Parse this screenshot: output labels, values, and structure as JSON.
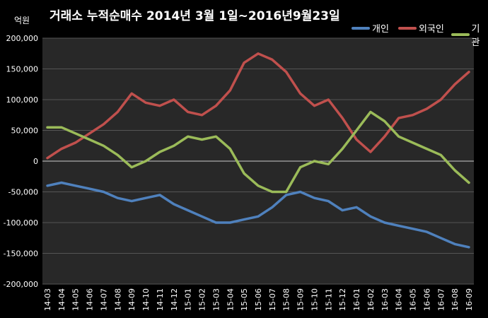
{
  "chart_data": {
    "type": "line",
    "title": "거래소  누적순매수 2014년 3월 1일~2016년9월23일",
    "ylabel": "억원",
    "xlabel": "",
    "ylim": [
      -200000,
      200000
    ],
    "yticks": [
      200000,
      150000,
      100000,
      50000,
      0,
      -50000,
      -100000,
      -150000,
      -200000
    ],
    "ytick_labels": [
      "200,000",
      "150,000",
      "100,000",
      "50,000",
      "0",
      "-50,000",
      "-100,000",
      "-150,000",
      "-200,000"
    ],
    "categories": [
      "14-03",
      "14-04",
      "14-05",
      "14-06",
      "14-07",
      "14-08",
      "14-09",
      "14-10",
      "14-11",
      "14-12",
      "15-01",
      "15-02",
      "15-03",
      "15-04",
      "15-05",
      "15-06",
      "15-07",
      "15-08",
      "15-09",
      "15-10",
      "15-11",
      "15-12",
      "16-01",
      "16-02",
      "16-03",
      "16-04",
      "16-05",
      "16-06",
      "16-07",
      "16-08",
      "16-09"
    ],
    "grid": true,
    "legend_position": "top-right",
    "series": [
      {
        "name": "개인",
        "color": "#4f81bd",
        "values": [
          -40000,
          -35000,
          -40000,
          -45000,
          -50000,
          -60000,
          -65000,
          -60000,
          -55000,
          -70000,
          -80000,
          -90000,
          -100000,
          -100000,
          -95000,
          -90000,
          -75000,
          -55000,
          -50000,
          -60000,
          -65000,
          -80000,
          -75000,
          -90000,
          -100000,
          -105000,
          -110000,
          -115000,
          -125000,
          -135000,
          -140000
        ]
      },
      {
        "name": "외국인",
        "color": "#c0504d",
        "values": [
          5000,
          20000,
          30000,
          45000,
          60000,
          80000,
          110000,
          95000,
          90000,
          100000,
          80000,
          75000,
          90000,
          115000,
          160000,
          175000,
          165000,
          145000,
          110000,
          90000,
          100000,
          70000,
          35000,
          15000,
          40000,
          70000,
          75000,
          85000,
          100000,
          125000,
          145000
        ]
      },
      {
        "name": "기관",
        "color": "#9bbb59",
        "values": [
          55000,
          55000,
          45000,
          35000,
          25000,
          10000,
          -10000,
          0,
          15000,
          25000,
          40000,
          35000,
          40000,
          20000,
          -20000,
          -40000,
          -50000,
          -50000,
          -10000,
          0,
          -5000,
          20000,
          50000,
          80000,
          65000,
          40000,
          30000,
          20000,
          10000,
          -15000,
          -35000
        ]
      }
    ]
  }
}
